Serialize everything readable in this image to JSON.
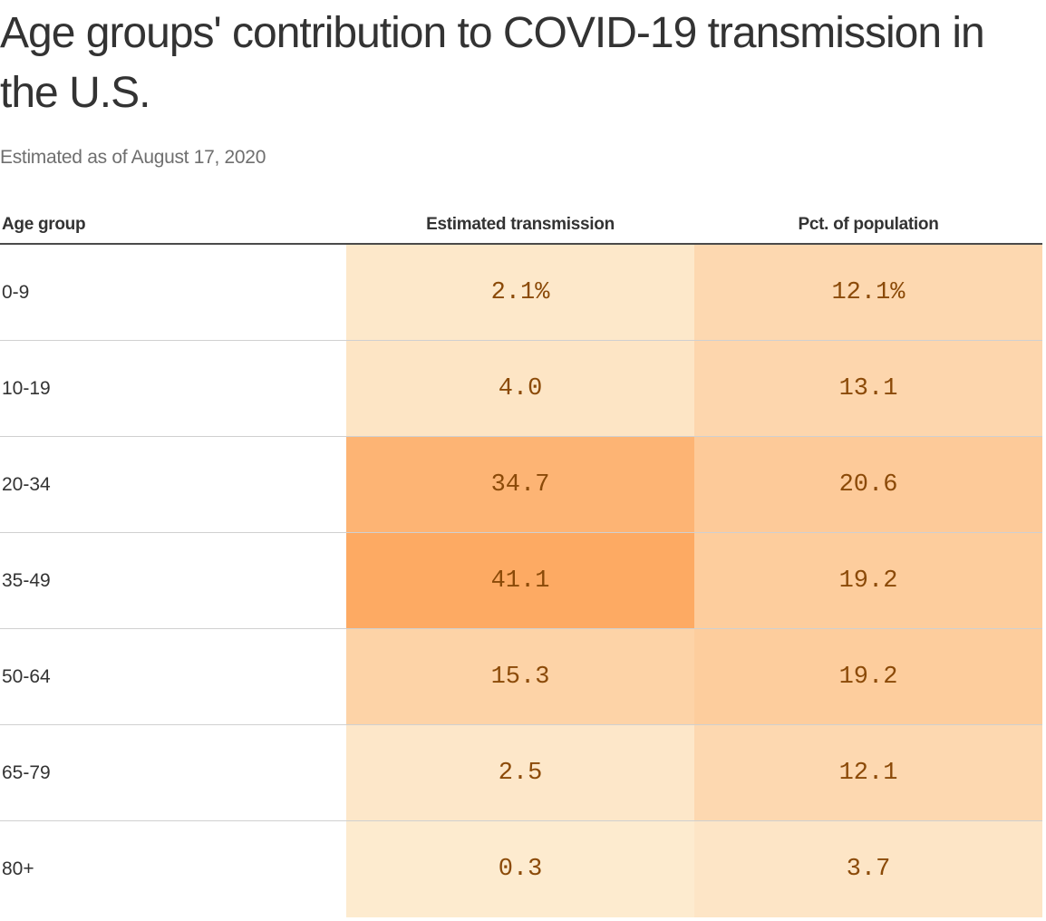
{
  "chart_data": {
    "type": "table",
    "title": "Age groups' contribution to COVID-19 transmission in the U.S.",
    "subtitle": "Estimated as of August 17, 2020",
    "columns": [
      "Age group",
      "Estimated transmission",
      "Pct. of population"
    ],
    "rows": [
      {
        "age": "0-9",
        "transmission": "2.1%",
        "population": "12.1%",
        "transmission_value": 2.1,
        "population_value": 12.1
      },
      {
        "age": "10-19",
        "transmission": "4.0",
        "population": "13.1",
        "transmission_value": 4.0,
        "population_value": 13.1
      },
      {
        "age": "20-34",
        "transmission": "34.7",
        "population": "20.6",
        "transmission_value": 34.7,
        "population_value": 20.6
      },
      {
        "age": "35-49",
        "transmission": "41.1",
        "population": "19.2",
        "transmission_value": 41.1,
        "population_value": 19.2
      },
      {
        "age": "50-64",
        "transmission": "15.3",
        "population": "19.2",
        "transmission_value": 15.3,
        "population_value": 19.2
      },
      {
        "age": "65-79",
        "transmission": "2.5",
        "population": "12.1",
        "transmission_value": 2.5,
        "population_value": 12.1
      },
      {
        "age": "80+",
        "transmission": "0.3",
        "population": "3.7",
        "transmission_value": 0.3,
        "population_value": 3.7
      }
    ],
    "color_scale": {
      "low_color": "#fdebd0",
      "high_color": "#fdaa63",
      "text_color": "#8b4a08"
    }
  }
}
